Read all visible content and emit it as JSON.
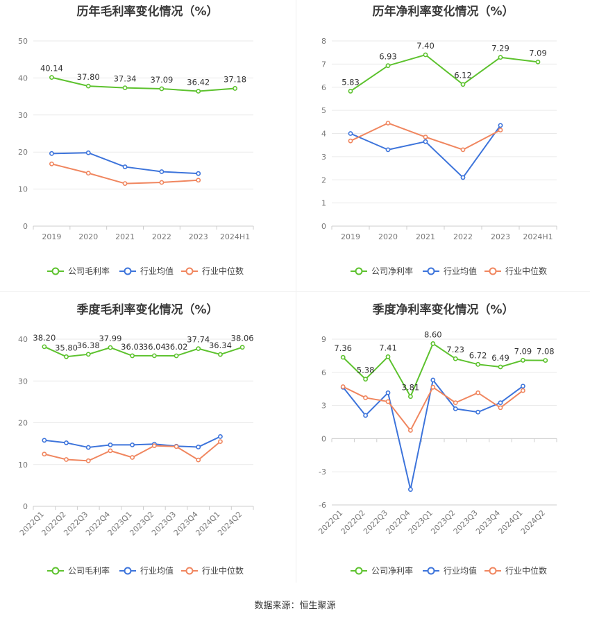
{
  "source": "数据来源：恒生聚源",
  "colors": {
    "company": "#5dc22e",
    "avg": "#3d74db",
    "median": "#f0865f"
  },
  "chart_data": [
    {
      "type": "line",
      "title": "历年毛利率变化情况（%）",
      "categories": [
        "2019",
        "2020",
        "2021",
        "2022",
        "2023",
        "2024H1"
      ],
      "ylim": [
        0,
        50
      ],
      "yticks": [
        0,
        10,
        20,
        30,
        40,
        50
      ],
      "series": [
        {
          "name": "公司毛利率",
          "key": "company",
          "values": [
            40.14,
            37.8,
            37.34,
            37.09,
            36.42,
            37.18
          ],
          "labeled": true
        },
        {
          "name": "行业均值",
          "key": "avg",
          "values": [
            19.6,
            19.8,
            16.0,
            14.7,
            14.2,
            null
          ]
        },
        {
          "name": "行业中位数",
          "key": "median",
          "values": [
            16.8,
            14.3,
            11.5,
            11.8,
            12.4,
            null
          ]
        }
      ],
      "labels": [
        "40.14",
        "37.80",
        "37.34",
        "37.09",
        "36.42",
        "37.18"
      ],
      "legend": "bottom"
    },
    {
      "type": "line",
      "title": "历年净利率变化情况（%）",
      "categories": [
        "2019",
        "2020",
        "2021",
        "2022",
        "2023",
        "2024H1"
      ],
      "ylim": [
        0,
        8
      ],
      "yticks": [
        0,
        1,
        2,
        3,
        4,
        5,
        6,
        7,
        8
      ],
      "series": [
        {
          "name": "公司净利率",
          "key": "company",
          "values": [
            5.83,
            6.93,
            7.4,
            6.12,
            7.29,
            7.09
          ],
          "labeled": true
        },
        {
          "name": "行业均值",
          "key": "avg",
          "values": [
            4.0,
            3.3,
            3.65,
            2.1,
            4.35,
            null
          ]
        },
        {
          "name": "行业中位数",
          "key": "median",
          "values": [
            3.68,
            4.45,
            3.85,
            3.3,
            4.15,
            null
          ]
        }
      ],
      "labels": [
        "5.83",
        "6.93",
        "7.40",
        "6.12",
        "7.29",
        "7.09"
      ],
      "legend": "bottom"
    },
    {
      "type": "line",
      "title": "季度毛利率变化情况（%）",
      "categories": [
        "2022Q1",
        "2022Q2",
        "2022Q3",
        "2022Q4",
        "2023Q1",
        "2023Q2",
        "2023Q3",
        "2023Q4",
        "2024Q1",
        "2024Q2"
      ],
      "ylim": [
        0,
        40
      ],
      "yticks": [
        0,
        10,
        20,
        30,
        40
      ],
      "series": [
        {
          "name": "公司毛利率",
          "key": "company",
          "values": [
            38.2,
            35.8,
            36.38,
            37.99,
            36.03,
            36.04,
            36.02,
            37.74,
            36.34,
            38.06
          ],
          "labeled": true
        },
        {
          "name": "行业均值",
          "key": "avg",
          "values": [
            15.8,
            15.2,
            14.1,
            14.7,
            14.7,
            14.9,
            14.4,
            14.2,
            16.7,
            null
          ]
        },
        {
          "name": "行业中位数",
          "key": "median",
          "values": [
            12.5,
            11.2,
            10.9,
            13.3,
            11.7,
            14.5,
            14.3,
            11.1,
            15.5,
            null
          ]
        }
      ],
      "labels": [
        "38.20",
        "35.80",
        "36.38",
        "37.99",
        "36.03",
        "36.04",
        "36.02",
        "37.74",
        "36.34",
        "38.06"
      ],
      "legend": "bottom"
    },
    {
      "type": "line",
      "title": "季度净利率变化情况（%）",
      "categories": [
        "2022Q1",
        "2022Q2",
        "2022Q3",
        "2022Q4",
        "2023Q1",
        "2023Q2",
        "2023Q3",
        "2023Q4",
        "2024Q1",
        "2024Q2"
      ],
      "ylim": [
        -6,
        9
      ],
      "yticks": [
        -6,
        -3,
        0,
        3,
        6,
        9
      ],
      "series": [
        {
          "name": "公司净利率",
          "key": "company",
          "values": [
            7.36,
            5.38,
            7.41,
            3.81,
            8.6,
            7.23,
            6.72,
            6.49,
            7.09,
            7.08
          ],
          "labeled": true
        },
        {
          "name": "行业均值",
          "key": "avg",
          "values": [
            4.65,
            2.1,
            4.15,
            -4.6,
            5.3,
            2.7,
            2.4,
            3.25,
            4.75,
            null
          ]
        },
        {
          "name": "行业中位数",
          "key": "median",
          "values": [
            4.7,
            3.7,
            3.35,
            0.75,
            4.65,
            3.25,
            4.15,
            2.8,
            4.35,
            null
          ]
        }
      ],
      "labels": [
        "7.36",
        "5.38",
        "7.41",
        "3.81",
        "8.60",
        "7.23",
        "6.72",
        "6.49",
        "7.09",
        "7.08"
      ],
      "legend": "bottom"
    }
  ]
}
